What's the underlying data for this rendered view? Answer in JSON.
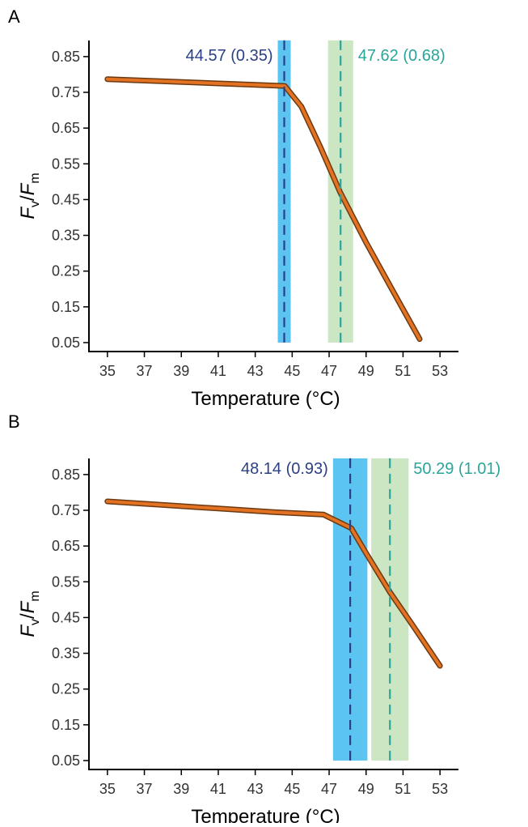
{
  "chart_data": [
    {
      "type": "line",
      "panel_label": "A",
      "xlabel": "Temperature (°C)",
      "ylabel_main": "F",
      "ylabel_sub1": "v",
      "ylabel_slash": "/",
      "ylabel_sub2": "m",
      "xlim": [
        34,
        54
      ],
      "ylim": [
        0.025,
        0.895
      ],
      "xticks": [
        35,
        37,
        39,
        41,
        43,
        45,
        47,
        49,
        51,
        53
      ],
      "yticks": [
        0.05,
        0.15,
        0.25,
        0.35,
        0.45,
        0.55,
        0.65,
        0.75,
        0.85
      ],
      "xtick_labels": [
        "35",
        "37",
        "39",
        "41",
        "43",
        "45",
        "47",
        "49",
        "51",
        "53"
      ],
      "ytick_labels": [
        "0.05",
        "0.15",
        "0.25",
        "0.35",
        "0.45",
        "0.55",
        "0.65",
        "0.75",
        "0.85"
      ],
      "series": [
        {
          "color": "#e37222",
          "x": [
            35,
            44.6,
            45.5,
            46.5,
            47.6,
            49,
            50.5,
            51.9
          ],
          "y": [
            0.787,
            0.768,
            0.71,
            0.6,
            0.47,
            0.33,
            0.19,
            0.06
          ]
        }
      ],
      "thresholds": [
        {
          "value": 44.57,
          "sd": 0.35,
          "band": [
            44.22,
            44.92
          ],
          "band_color": "#5bc4f1",
          "line_color": "#2b3f87",
          "label": "44.57 (0.35)"
        },
        {
          "value": 47.62,
          "sd": 0.68,
          "band": [
            46.94,
            48.3
          ],
          "band_color": "#cce6c4",
          "line_color": "#2aa59a",
          "label": "47.62 (0.68)"
        }
      ]
    },
    {
      "type": "line",
      "panel_label": "B",
      "xlabel": "Temperature (°C)",
      "ylabel_main": "F",
      "ylabel_sub1": "v",
      "ylabel_slash": "/",
      "ylabel_sub2": "m",
      "xlim": [
        34,
        54
      ],
      "ylim": [
        0.025,
        0.895
      ],
      "xticks": [
        35,
        37,
        39,
        41,
        43,
        45,
        47,
        49,
        51,
        53
      ],
      "yticks": [
        0.05,
        0.15,
        0.25,
        0.35,
        0.45,
        0.55,
        0.65,
        0.75,
        0.85
      ],
      "xtick_labels": [
        "35",
        "37",
        "39",
        "41",
        "43",
        "45",
        "47",
        "49",
        "51",
        "53"
      ],
      "ytick_labels": [
        "0.05",
        "0.15",
        "0.25",
        "0.35",
        "0.45",
        "0.55",
        "0.65",
        "0.75",
        "0.85"
      ],
      "series": [
        {
          "color": "#e37222",
          "x": [
            35,
            38,
            41,
            44,
            46.7,
            48.2,
            49,
            50.3,
            51.5,
            53
          ],
          "y": [
            0.775,
            0.765,
            0.755,
            0.745,
            0.738,
            0.7,
            0.63,
            0.52,
            0.43,
            0.315
          ]
        }
      ],
      "thresholds": [
        {
          "value": 48.14,
          "sd": 0.93,
          "band": [
            47.21,
            49.07
          ],
          "band_color": "#5bc4f1",
          "line_color": "#2b3f87",
          "label": "48.14 (0.93)"
        },
        {
          "value": 50.29,
          "sd": 1.01,
          "band": [
            49.28,
            51.3
          ],
          "band_color": "#cce6c4",
          "line_color": "#2aa59a",
          "label": "50.29 (1.01)"
        }
      ]
    }
  ]
}
